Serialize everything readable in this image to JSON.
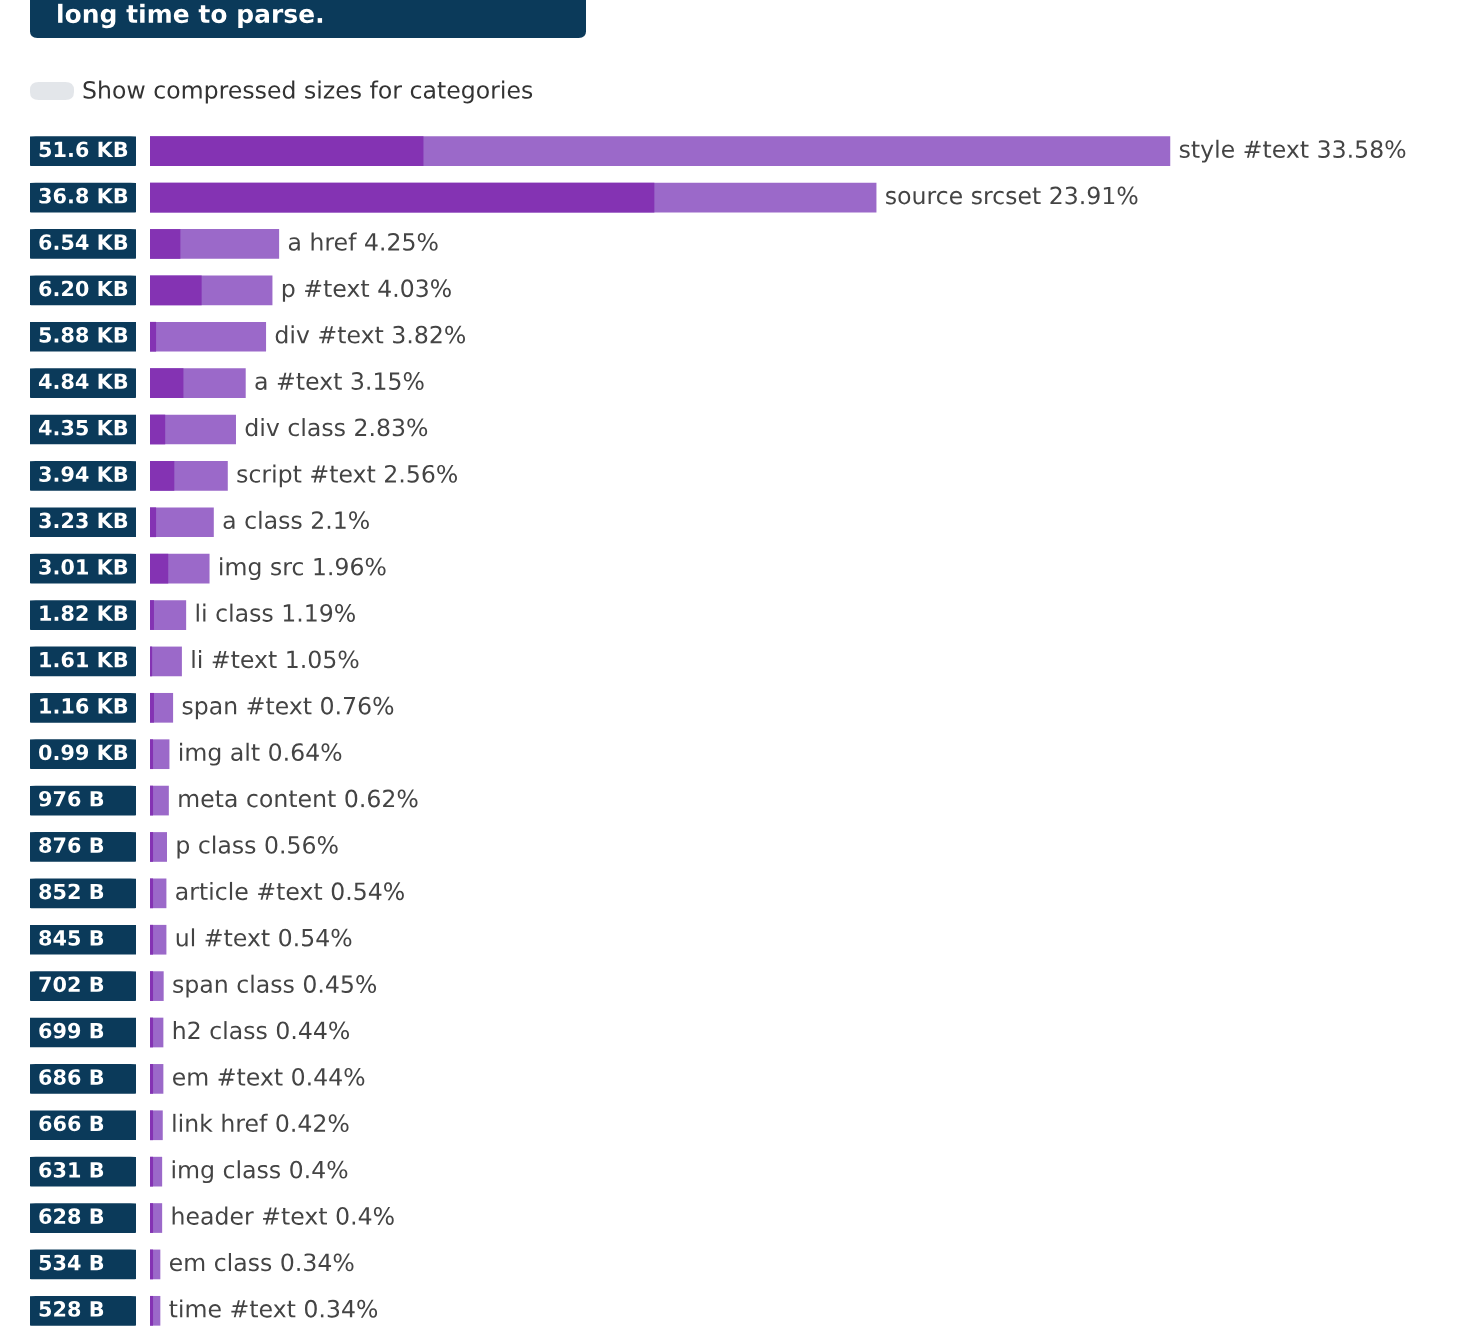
{
  "chart_data": {
    "type": "bar",
    "orientation": "horizontal",
    "tick_labels": "y",
    "annotations": [
      "long time to parse.",
      "Show compressed sizes for categories"
    ],
    "categories": [
      "51.6 KB",
      "36.8 KB",
      "6.54 KB",
      "6.20 KB",
      "5.88 KB",
      "4.84 KB",
      "4.35 KB",
      "3.94 KB",
      "3.23 KB",
      "3.01 KB",
      "1.82 KB",
      "1.61 KB",
      "1.16 KB",
      "0.99 KB",
      "976 B",
      "876 B",
      "852 B",
      "845 B",
      "702 B",
      "699 B",
      "686 B",
      "666 B",
      "631 B",
      "628 B",
      "534 B",
      "528 B"
    ],
    "series": [
      {
        "color": "#9b69c9",
        "values": [
          33.58,
          23.91,
          4.25,
          4.03,
          3.82,
          3.15,
          2.83,
          2.56,
          2.1,
          1.96,
          1.19,
          1.05,
          0.76,
          0.64,
          0.62,
          0.56,
          0.54,
          0.54,
          0.45,
          0.44,
          0.44,
          0.42,
          0.4,
          0.4,
          0.34,
          0.34
        ],
        "value_labels": [
          "style #text 33.58%",
          "source srcset 23.91%",
          "a href 4.25%",
          "p #text 4.03%",
          "div #text 3.82%",
          "a #text 3.15%",
          "div class 2.83%",
          "script #text 2.56%",
          "a class 2.1%",
          "img src 1.96%",
          "li class 1.19%",
          "li #text 1.05%",
          "span #text 0.76%",
          "img alt 0.64%",
          "meta content 0.62%",
          "p class 0.56%",
          "article #text 0.54%",
          "ul #text 0.54%",
          "span class 0.45%",
          "h2 class 0.44%",
          "em #text 0.44%",
          "link href 0.42%",
          "img class 0.4%",
          "header #text 0.4%",
          "em class 0.34%",
          "time #text 0.34%"
        ]
      },
      {
        "color": "#8433b3",
        "values": [
          9.0,
          16.6,
          1.0,
          1.7,
          0.2,
          1.1,
          0.5,
          0.8,
          0.2,
          0.6,
          0.13,
          0.07,
          0.13,
          0.1,
          0.1,
          0.1,
          0.1,
          0.1,
          0.1,
          0.1,
          0.1,
          0.1,
          0.1,
          0.1,
          0.1,
          0.1
        ]
      }
    ]
  }
}
